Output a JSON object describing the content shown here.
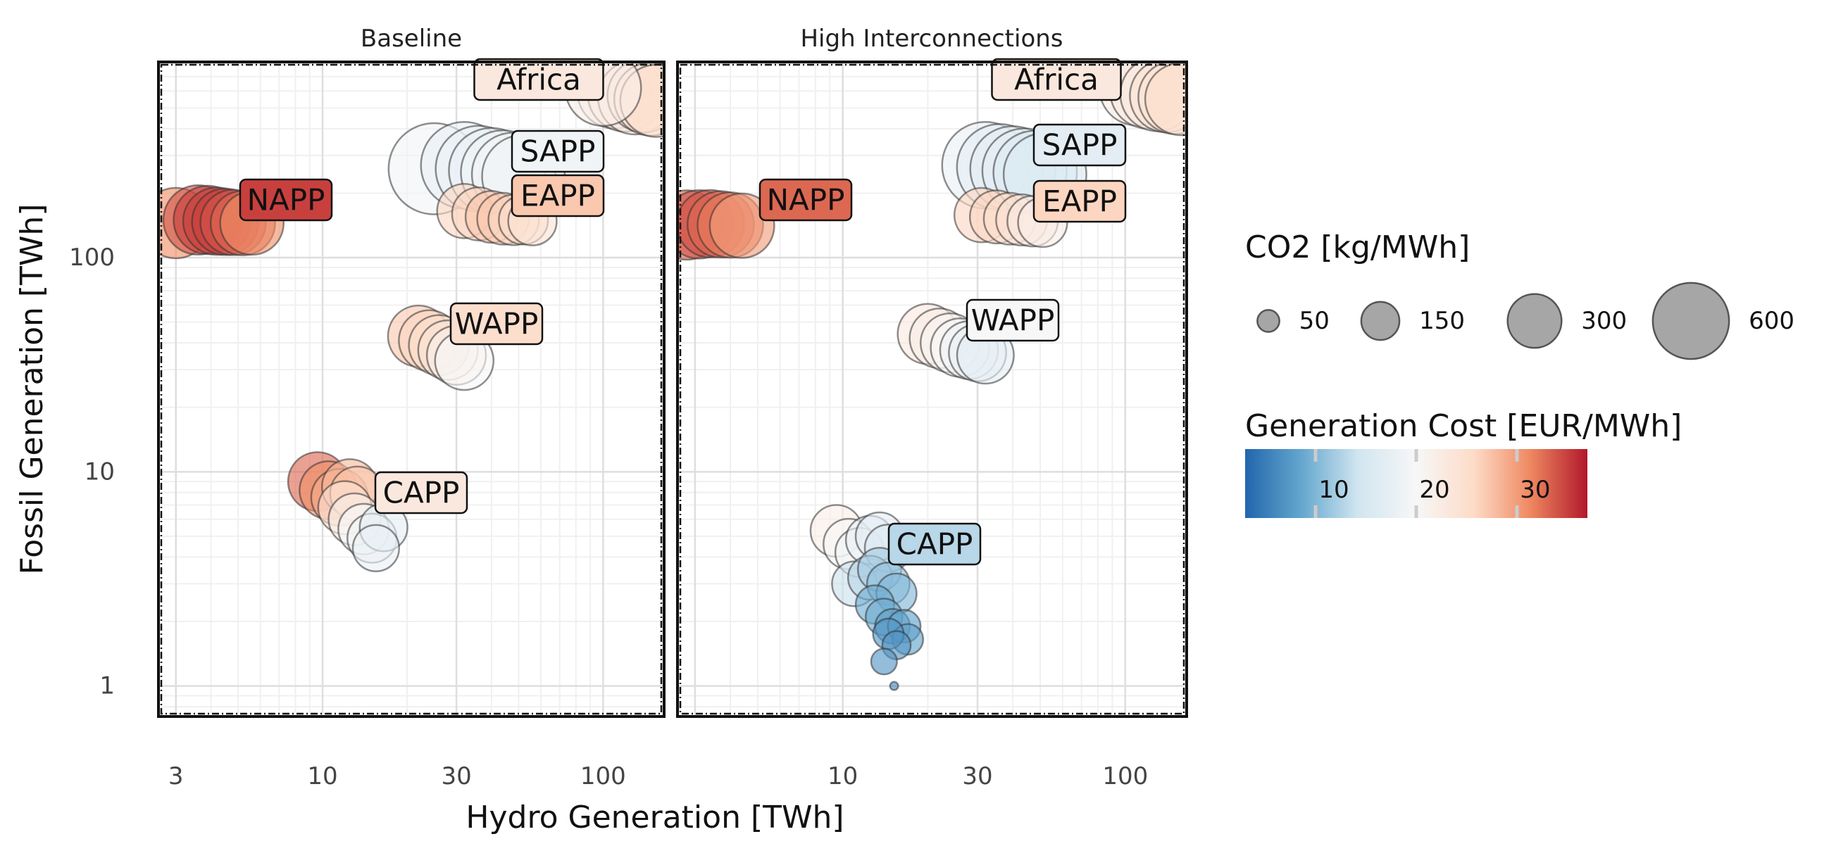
{
  "chart_data": {
    "type": "scatter",
    "xlabel": "Hydro Generation [TWh]",
    "ylabel": "Fossil Generation [TWh]",
    "x_scale": "log",
    "y_scale": "log",
    "xlim": [
      2.6,
      165
    ],
    "ylim": [
      0.72,
      820
    ],
    "x_ticks": [
      "3",
      "10",
      "30",
      "100"
    ],
    "x_tick_values": [
      3,
      10,
      30,
      100
    ],
    "y_ticks": [
      "1",
      "10",
      "100"
    ],
    "y_tick_values": [
      1,
      10,
      100
    ],
    "grid": true,
    "size_legend": {
      "title": "CO2 [kg/MWh]",
      "labels": [
        "50",
        "150",
        "300",
        "600"
      ],
      "values": [
        50,
        150,
        300,
        600
      ]
    },
    "color_legend": {
      "title": "Generation Cost [EUR/MWh]",
      "labels": [
        "10",
        "20",
        "30"
      ],
      "values": [
        10,
        20,
        30
      ],
      "range": [
        3,
        37
      ],
      "colors": [
        "#2166ac",
        "#67a9cf",
        "#d1e5f0",
        "#f7f7f7",
        "#fddbc7",
        "#ef8a62",
        "#b2182b"
      ]
    },
    "panels": [
      {
        "title": "Baseline",
        "regions": [
          {
            "name": "Africa",
            "label_color": 23,
            "points": [
              {
                "x": 110,
                "y": 600,
                "co2": 420,
                "cost": 22
              },
              {
                "x": 120,
                "y": 580,
                "co2": 420,
                "cost": 23
              },
              {
                "x": 130,
                "y": 560,
                "co2": 410,
                "cost": 23
              },
              {
                "x": 140,
                "y": 570,
                "co2": 400,
                "cost": 24
              },
              {
                "x": 148,
                "y": 550,
                "co2": 400,
                "cost": 24
              },
              {
                "x": 155,
                "y": 540,
                "co2": 390,
                "cost": 25
              },
              {
                "x": 100,
                "y": 620,
                "co2": 430,
                "cost": 22
              }
            ]
          },
          {
            "name": "SAPP",
            "label_color": 19,
            "points": [
              {
                "x": 25,
                "y": 260,
                "co2": 620,
                "cost": 19
              },
              {
                "x": 32,
                "y": 270,
                "co2": 560,
                "cost": 18
              },
              {
                "x": 36,
                "y": 260,
                "co2": 550,
                "cost": 18
              },
              {
                "x": 40,
                "y": 255,
                "co2": 540,
                "cost": 18
              },
              {
                "x": 44,
                "y": 250,
                "co2": 530,
                "cost": 19
              },
              {
                "x": 48,
                "y": 245,
                "co2": 520,
                "cost": 19
              },
              {
                "x": 52,
                "y": 240,
                "co2": 510,
                "cost": 19
              }
            ]
          },
          {
            "name": "EAPP",
            "label_color": 27,
            "points": [
              {
                "x": 32,
                "y": 165,
                "co2": 220,
                "cost": 26
              },
              {
                "x": 36,
                "y": 160,
                "co2": 210,
                "cost": 26
              },
              {
                "x": 40,
                "y": 155,
                "co2": 200,
                "cost": 27
              },
              {
                "x": 44,
                "y": 152,
                "co2": 200,
                "cost": 27
              },
              {
                "x": 48,
                "y": 150,
                "co2": 190,
                "cost": 26
              },
              {
                "x": 52,
                "y": 150,
                "co2": 180,
                "cost": 25
              },
              {
                "x": 56,
                "y": 148,
                "co2": 175,
                "cost": 24
              }
            ]
          },
          {
            "name": "NAPP",
            "label_color": 35,
            "points": [
              {
                "x": 3,
                "y": 145,
                "co2": 370,
                "cost": 31
              },
              {
                "x": 3.6,
                "y": 150,
                "co2": 360,
                "cost": 34
              },
              {
                "x": 3.9,
                "y": 150,
                "co2": 350,
                "cost": 35
              },
              {
                "x": 4.2,
                "y": 148,
                "co2": 340,
                "cost": 35
              },
              {
                "x": 4.5,
                "y": 147,
                "co2": 330,
                "cost": 35
              },
              {
                "x": 4.8,
                "y": 146,
                "co2": 320,
                "cost": 34
              },
              {
                "x": 5.2,
                "y": 145,
                "co2": 310,
                "cost": 33
              },
              {
                "x": 5.6,
                "y": 145,
                "co2": 300,
                "cost": 31
              }
            ]
          },
          {
            "name": "WAPP",
            "label_color": 25,
            "points": [
              {
                "x": 22,
                "y": 43,
                "co2": 280,
                "cost": 27
              },
              {
                "x": 24,
                "y": 41,
                "co2": 275,
                "cost": 26
              },
              {
                "x": 26,
                "y": 39,
                "co2": 270,
                "cost": 25
              },
              {
                "x": 28,
                "y": 37,
                "co2": 265,
                "cost": 24
              },
              {
                "x": 30,
                "y": 35,
                "co2": 260,
                "cost": 22
              },
              {
                "x": 32,
                "y": 33,
                "co2": 255,
                "cost": 20
              }
            ]
          },
          {
            "name": "CAPP",
            "label_color": 23,
            "points": [
              {
                "x": 9.6,
                "y": 9.0,
                "co2": 260,
                "cost": 33
              },
              {
                "x": 10.5,
                "y": 8.2,
                "co2": 250,
                "cost": 31
              },
              {
                "x": 11.5,
                "y": 7.6,
                "co2": 240,
                "cost": 29
              },
              {
                "x": 12.5,
                "y": 8.5,
                "co2": 230,
                "cost": 28
              },
              {
                "x": 13.3,
                "y": 7.9,
                "co2": 220,
                "cost": 27
              },
              {
                "x": 12.0,
                "y": 6.8,
                "co2": 210,
                "cost": 24
              },
              {
                "x": 13.0,
                "y": 6.0,
                "co2": 200,
                "cost": 22
              },
              {
                "x": 14.0,
                "y": 5.4,
                "co2": 190,
                "cost": 20
              },
              {
                "x": 15.0,
                "y": 4.9,
                "co2": 180,
                "cost": 19
              },
              {
                "x": 16.5,
                "y": 5.5,
                "co2": 170,
                "cost": 17
              },
              {
                "x": 15.5,
                "y": 4.4,
                "co2": 160,
                "cost": 18
              }
            ]
          }
        ]
      },
      {
        "title": "High Interconnections",
        "regions": [
          {
            "name": "Africa",
            "label_color": 23,
            "points": [
              {
                "x": 110,
                "y": 620,
                "co2": 420,
                "cost": 22
              },
              {
                "x": 120,
                "y": 600,
                "co2": 420,
                "cost": 23
              },
              {
                "x": 130,
                "y": 580,
                "co2": 410,
                "cost": 23
              },
              {
                "x": 140,
                "y": 570,
                "co2": 400,
                "cost": 24
              },
              {
                "x": 150,
                "y": 560,
                "co2": 400,
                "cost": 24
              },
              {
                "x": 158,
                "y": 550,
                "co2": 390,
                "cost": 25
              }
            ]
          },
          {
            "name": "SAPP",
            "label_color": 17,
            "points": [
              {
                "x": 32,
                "y": 270,
                "co2": 560,
                "cost": 18
              },
              {
                "x": 36,
                "y": 265,
                "co2": 550,
                "cost": 17
              },
              {
                "x": 40,
                "y": 260,
                "co2": 540,
                "cost": 17
              },
              {
                "x": 44,
                "y": 255,
                "co2": 530,
                "cost": 17
              },
              {
                "x": 48,
                "y": 250,
                "co2": 520,
                "cost": 16
              },
              {
                "x": 52,
                "y": 245,
                "co2": 510,
                "cost": 16
              }
            ]
          },
          {
            "name": "EAPP",
            "label_color": 26,
            "points": [
              {
                "x": 31,
                "y": 158,
                "co2": 220,
                "cost": 26
              },
              {
                "x": 35,
                "y": 155,
                "co2": 210,
                "cost": 26
              },
              {
                "x": 39,
                "y": 152,
                "co2": 200,
                "cost": 25
              },
              {
                "x": 43,
                "y": 150,
                "co2": 195,
                "cost": 24
              },
              {
                "x": 47,
                "y": 148,
                "co2": 190,
                "cost": 23
              },
              {
                "x": 51,
                "y": 146,
                "co2": 180,
                "cost": 22
              }
            ]
          },
          {
            "name": "NAPP",
            "label_color": 33,
            "points": [
              {
                "x": 2.8,
                "y": 142,
                "co2": 360,
                "cost": 33
              },
              {
                "x": 3.1,
                "y": 143,
                "co2": 350,
                "cost": 34
              },
              {
                "x": 3.4,
                "y": 144,
                "co2": 340,
                "cost": 34
              },
              {
                "x": 3.7,
                "y": 143,
                "co2": 330,
                "cost": 33
              },
              {
                "x": 4.0,
                "y": 142,
                "co2": 320,
                "cost": 32
              },
              {
                "x": 4.4,
                "y": 141,
                "co2": 310,
                "cost": 30
              }
            ]
          },
          {
            "name": "WAPP",
            "label_color": 20,
            "points": [
              {
                "x": 20,
                "y": 44,
                "co2": 270,
                "cost": 23
              },
              {
                "x": 22,
                "y": 42,
                "co2": 265,
                "cost": 22
              },
              {
                "x": 24,
                "y": 40,
                "co2": 260,
                "cost": 21
              },
              {
                "x": 26,
                "y": 38,
                "co2": 255,
                "cost": 20
              },
              {
                "x": 28,
                "y": 37,
                "co2": 250,
                "cost": 19
              },
              {
                "x": 30,
                "y": 36,
                "co2": 245,
                "cost": 18
              },
              {
                "x": 32,
                "y": 35,
                "co2": 240,
                "cost": 17
              }
            ]
          },
          {
            "name": "CAPP",
            "label_color": 13,
            "points": [
              {
                "x": 9.5,
                "y": 5.3,
                "co2": 200,
                "cost": 22
              },
              {
                "x": 10.5,
                "y": 4.6,
                "co2": 190,
                "cost": 20
              },
              {
                "x": 11.5,
                "y": 4.2,
                "co2": 180,
                "cost": 19
              },
              {
                "x": 12.5,
                "y": 4.8,
                "co2": 175,
                "cost": 18
              },
              {
                "x": 13.5,
                "y": 5.0,
                "co2": 170,
                "cost": 17
              },
              {
                "x": 14.5,
                "y": 4.4,
                "co2": 165,
                "cost": 16
              },
              {
                "x": 11.0,
                "y": 3.0,
                "co2": 150,
                "cost": 14
              },
              {
                "x": 12.5,
                "y": 3.2,
                "co2": 145,
                "cost": 13
              },
              {
                "x": 13.5,
                "y": 3.5,
                "co2": 140,
                "cost": 12
              },
              {
                "x": 14.5,
                "y": 3.0,
                "co2": 135,
                "cost": 11
              },
              {
                "x": 15.5,
                "y": 2.7,
                "co2": 120,
                "cost": 10
              },
              {
                "x": 13.0,
                "y": 2.4,
                "co2": 110,
                "cost": 9
              },
              {
                "x": 14.0,
                "y": 2.1,
                "co2": 100,
                "cost": 9
              },
              {
                "x": 15.0,
                "y": 1.9,
                "co2": 90,
                "cost": 8
              },
              {
                "x": 16.5,
                "y": 1.9,
                "co2": 80,
                "cost": 8
              },
              {
                "x": 17.0,
                "y": 1.65,
                "co2": 70,
                "cost": 8
              },
              {
                "x": 14.5,
                "y": 1.75,
                "co2": 70,
                "cost": 7
              },
              {
                "x": 15.5,
                "y": 1.55,
                "co2": 60,
                "cost": 7
              },
              {
                "x": 14.0,
                "y": 1.3,
                "co2": 50,
                "cost": 7
              },
              {
                "x": 15.2,
                "y": 1.0,
                "co2": 5,
                "cost": 6
              }
            ]
          }
        ]
      }
    ]
  }
}
